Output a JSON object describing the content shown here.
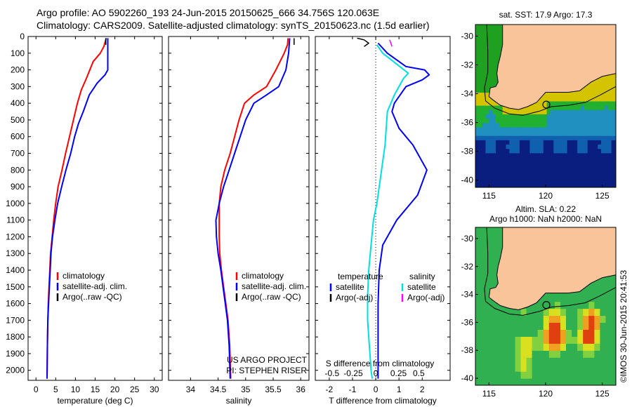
{
  "header": {
    "line1": "Argo profile: AO 5902260_193 24-Jun-2015 20150625_666 34.756S 120.063E",
    "line2": "Climatology: CARS2009. Satellite-adjusted climatology: synTS_20150623.nc (1.5d earlier)"
  },
  "chart_data": [
    {
      "type": "line",
      "id": "temperature",
      "xlabel": "temperature (deg C)",
      "xlim": [
        -2,
        32
      ],
      "ylim": [
        2060,
        0
      ],
      "xticks": [
        "0",
        "5",
        "10",
        "15",
        "20",
        "25",
        "30"
      ],
      "xtick_values": [
        0,
        5,
        10,
        15,
        20,
        25,
        30
      ],
      "yticks": [
        "0",
        "100",
        "200",
        "300",
        "400",
        "500",
        "600",
        "700",
        "800",
        "900",
        "1000",
        "1100",
        "1200",
        "1300",
        "1400",
        "1500",
        "1600",
        "1700",
        "1800",
        "1900",
        "2000"
      ],
      "ytick_values": [
        0,
        100,
        200,
        300,
        400,
        500,
        600,
        700,
        800,
        900,
        1000,
        1100,
        1200,
        1300,
        1400,
        1500,
        1600,
        1700,
        1800,
        1900,
        2000
      ],
      "legend": [
        "climatology",
        "satellite-adj. clim.",
        "Argo(..raw -QC)"
      ],
      "series": [
        {
          "name": "climatology",
          "color": "#ff0000",
          "x": [
            17.8,
            17.2,
            16.3,
            14.5,
            12.8,
            11.5,
            10.5,
            9.5,
            8.5,
            7.5,
            6.6,
            5.6,
            5.0,
            4.5,
            4.1,
            3.7,
            3.5,
            3.3,
            3.1,
            3.0,
            2.9,
            2.8
          ],
          "y": [
            10,
            60,
            100,
            150,
            250,
            320,
            400,
            500,
            600,
            700,
            800,
            900,
            1000,
            1100,
            1200,
            1300,
            1400,
            1500,
            1600,
            1700,
            1850,
            2050
          ]
        },
        {
          "name": "satellite-adj. clim.",
          "color": "#0000ff",
          "x": [
            18.2,
            18.2,
            18.2,
            17.5,
            15.5,
            13.5,
            12.0,
            10.8,
            9.8,
            8.8,
            7.6,
            6.5,
            5.5,
            4.8,
            4.2,
            3.8,
            3.6,
            3.4,
            3.2,
            3.0,
            2.9,
            2.8
          ],
          "y": [
            10,
            60,
            200,
            230,
            280,
            350,
            450,
            520,
            600,
            700,
            800,
            900,
            1000,
            1100,
            1200,
            1300,
            1400,
            1500,
            1600,
            1700,
            1850,
            2050
          ]
        },
        {
          "name": "Argo(..raw -QC)",
          "color": "#000000",
          "x": [
            17.7,
            17.7
          ],
          "y": [
            10,
            50
          ]
        }
      ]
    },
    {
      "type": "line",
      "id": "salinity",
      "xlabel": "salinity",
      "xlim": [
        33.6,
        36.15
      ],
      "ylim": [
        2060,
        0
      ],
      "xticks": [
        "34",
        "34.5",
        "35",
        "35.5",
        "36"
      ],
      "xtick_values": [
        34,
        34.5,
        35,
        35.5,
        36
      ],
      "legend": [
        "climatology",
        "satellite-adj. clim.",
        "Argo(..raw -QC)"
      ],
      "annotations": [
        "US ARGO PROJECT",
        "PI: STEPHEN RISER"
      ],
      "series": [
        {
          "name": "climatology",
          "color": "#ff0000",
          "x": [
            35.77,
            35.76,
            35.7,
            35.55,
            35.38,
            35.15,
            34.98,
            34.88,
            34.8,
            34.72,
            34.62,
            34.55,
            34.52,
            34.52,
            34.52,
            34.53,
            34.56,
            34.6,
            34.64,
            34.68,
            34.71,
            34.73
          ],
          "y": [
            10,
            50,
            100,
            200,
            300,
            350,
            400,
            500,
            600,
            700,
            800,
            900,
            1000,
            1100,
            1200,
            1300,
            1400,
            1500,
            1600,
            1700,
            1850,
            2050
          ]
        },
        {
          "name": "satellite-adj. clim.",
          "color": "#0000ff",
          "x": [
            35.8,
            35.79,
            35.78,
            35.73,
            35.6,
            35.38,
            35.15,
            35.0,
            34.9,
            34.8,
            34.7,
            34.6,
            34.52,
            34.46,
            34.47,
            34.5,
            34.55,
            34.59,
            34.63,
            34.67,
            34.7,
            34.72
          ],
          "y": [
            10,
            50,
            100,
            200,
            300,
            350,
            400,
            500,
            600,
            700,
            800,
            900,
            1000,
            1100,
            1200,
            1300,
            1400,
            1500,
            1600,
            1700,
            1850,
            2050
          ]
        },
        {
          "name": "Argo(..raw -QC)",
          "color": "#000000",
          "x": [
            35.88,
            35.88
          ],
          "y": [
            10,
            50
          ]
        }
      ]
    },
    {
      "type": "line",
      "id": "difference",
      "xlabel": "T difference from climatology",
      "xlabel_top": "S difference from climatology",
      "xlim": [
        -2.6,
        3.2
      ],
      "ylim": [
        2060,
        0
      ],
      "xticks": [
        "-2",
        "-1",
        "0",
        "1",
        "2"
      ],
      "xtick_values": [
        -2,
        -1,
        0,
        1,
        2
      ],
      "sticks": [
        "-0.5",
        "-0.25",
        "0",
        "0.25",
        "0.5"
      ],
      "stick_values": [
        -1.88,
        -0.97,
        0,
        0.98,
        1.85
      ],
      "legend_headers": [
        "temperature",
        "salinity"
      ],
      "legend": [
        "satellite",
        "Argo(-adj)",
        "satellite",
        "Argo(-adj)"
      ],
      "series": [
        {
          "name": "temperature satellite",
          "color": "#0000ff",
          "x": [
            0.1,
            0.5,
            1.3,
            2.1,
            2.3,
            2.0,
            1.3,
            0.8,
            0.7,
            1.0,
            1.6,
            2.2,
            1.8,
            0.9,
            0.3,
            0.15,
            0.1,
            0.1,
            0.1,
            0.1
          ],
          "y": [
            40,
            100,
            180,
            200,
            230,
            260,
            300,
            400,
            450,
            550,
            650,
            800,
            950,
            1100,
            1250,
            1400,
            1600,
            1800,
            1950,
            2050
          ]
        },
        {
          "name": "salinity satellite",
          "color": "#00e0e0",
          "x": [
            0.05,
            0.3,
            1.4,
            1.2,
            0.8,
            0.5,
            0.45,
            0.4,
            0.3,
            0.2,
            0.05,
            -0.1,
            -0.2,
            -0.3,
            -0.35,
            -0.35,
            -0.3,
            -0.25,
            -0.2,
            -0.15
          ],
          "y": [
            50,
            100,
            220,
            250,
            350,
            450,
            550,
            650,
            750,
            850,
            1000,
            1100,
            1250,
            1400,
            1550,
            1700,
            1800,
            1900,
            2000,
            2050
          ]
        },
        {
          "name": "temperature Argo(-adj)",
          "color": "#000000",
          "x": [
            -0.8,
            -0.5,
            -0.3,
            -0.5
          ],
          "y": [
            10,
            20,
            40,
            60
          ]
        },
        {
          "name": "salinity Argo(-adj)",
          "color": "#ff00ff",
          "x": [
            0.6,
            0.7
          ],
          "y": [
            20,
            60
          ]
        }
      ]
    },
    {
      "type": "heatmap",
      "id": "sst-map",
      "title": "sat. SST: 17.9 Argo: 17.3",
      "xticks": [
        "115",
        "120",
        "125"
      ],
      "xtick_values": [
        115,
        120,
        125
      ],
      "yticks": [
        "-30",
        "-32",
        "-34",
        "-36",
        "-38",
        "-40"
      ],
      "ytick_values": [
        -30,
        -32,
        -34,
        -36,
        -38,
        -40
      ],
      "xlim": [
        113.8,
        126.2
      ],
      "ylim": [
        -40.5,
        -29.2
      ],
      "float_position": [
        120.063,
        -34.756
      ]
    },
    {
      "type": "heatmap",
      "id": "sla-map",
      "title_line1": "Altim. SLA: 0.22",
      "title_line2": "Argo h1000: NaN h2000: NaN",
      "xticks": [
        "115",
        "120",
        "125"
      ],
      "xtick_values": [
        115,
        120,
        125
      ],
      "yticks": [
        "-30",
        "-32",
        "-34",
        "-36",
        "-38",
        "-40"
      ],
      "ytick_values": [
        -30,
        -32,
        -34,
        -36,
        -38,
        -40
      ],
      "xlim": [
        113.8,
        126.2
      ],
      "ylim": [
        -40.5,
        -29.2
      ],
      "float_position": [
        120.063,
        -34.756
      ]
    }
  ],
  "credit": "©IMOS 30-Jun-2015 20:41:53",
  "colors": {
    "land": "#f9c49a",
    "axis": "#000000",
    "climatology": "#ff0000",
    "satellite": "#0000ff",
    "salinity_sat": "#00e0e0",
    "argo_s": "#ff00ff"
  }
}
